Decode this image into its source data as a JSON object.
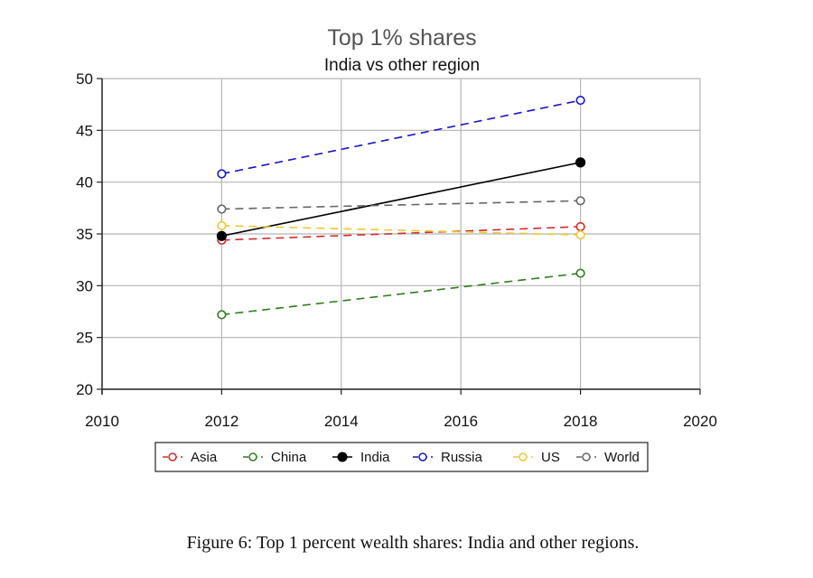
{
  "chart_data": {
    "type": "line",
    "title": "Top 1% shares",
    "subtitle": "India vs other region",
    "xlabel": "",
    "ylabel": "",
    "xlim": [
      2010,
      2020
    ],
    "ylim": [
      20,
      50
    ],
    "xticks": [
      2010,
      2012,
      2014,
      2016,
      2018,
      2020
    ],
    "xtick_labels": [
      "2010",
      "2012",
      "2014",
      "2016",
      "2018",
      "2020"
    ],
    "yticks": [
      20,
      25,
      30,
      35,
      40,
      45,
      50
    ],
    "ytick_labels": [
      "20",
      "25",
      "30",
      "35",
      "40",
      "45",
      "50"
    ],
    "grid": true,
    "legend_position": "bottom",
    "x": [
      2012,
      2018
    ],
    "series": [
      {
        "name": "Asia",
        "values": [
          34.4,
          35.7
        ],
        "color": "#d62a2a",
        "dashed": true,
        "filled": false
      },
      {
        "name": "China",
        "values": [
          27.2,
          31.2
        ],
        "color": "#2e7d1c",
        "dashed": true,
        "filled": false
      },
      {
        "name": "India",
        "values": [
          34.8,
          41.9
        ],
        "color": "#000000",
        "dashed": false,
        "filled": true
      },
      {
        "name": "Russia",
        "values": [
          40.8,
          47.9
        ],
        "color": "#1515c8",
        "dashed": true,
        "filled": false
      },
      {
        "name": "US",
        "values": [
          35.8,
          34.9
        ],
        "color": "#ecc832",
        "dashed": true,
        "filled": false
      },
      {
        "name": "World",
        "values": [
          37.4,
          38.2
        ],
        "color": "#666666",
        "dashed": true,
        "filled": false
      }
    ]
  },
  "caption": "Figure 6: Top 1 percent wealth shares: India and other regions."
}
